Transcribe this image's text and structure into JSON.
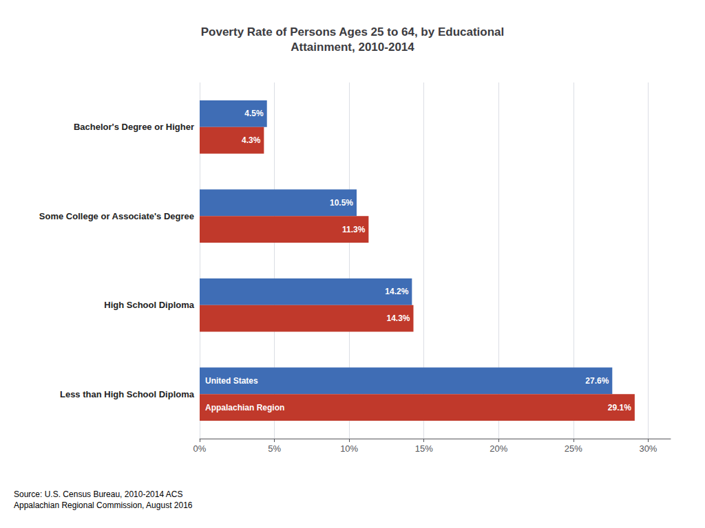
{
  "chart_data": {
    "type": "bar",
    "orientation": "horizontal",
    "title": "Poverty Rate of Persons Ages 25 to 64, by Educational\nAttainment, 2010-2014",
    "categories": [
      "Less than High School Diploma",
      "High School Diploma",
      "Some College or Associate's Degree",
      "Bachelor's Degree or Higher"
    ],
    "series": [
      {
        "name": "United States",
        "color": "#3F6DB5",
        "values": [
          27.6,
          14.2,
          10.5,
          4.5
        ],
        "value_labels": [
          "27.6%",
          "14.2%",
          "10.5%",
          "4.5%"
        ]
      },
      {
        "name": "Appalachian Region",
        "color": "#C0392B",
        "values": [
          29.1,
          14.3,
          11.3,
          4.3
        ],
        "value_labels": [
          "29.1%",
          "14.3%",
          "11.3%",
          "4.3%"
        ]
      }
    ],
    "xlim": [
      0,
      31.5
    ],
    "xticks": [
      {
        "value": 0,
        "label": "0%"
      },
      {
        "value": 5,
        "label": "5%"
      },
      {
        "value": 10,
        "label": "10%"
      },
      {
        "value": 15,
        "label": "15%"
      },
      {
        "value": 20,
        "label": "20%"
      },
      {
        "value": 25,
        "label": "25%"
      },
      {
        "value": 30,
        "label": "30%"
      }
    ],
    "grid": true,
    "data_labels": true,
    "annotations": [
      "Source: U.S. Census Bureau, 2010-2014 ACS\nAppalachian Regional Commission, August 2016"
    ]
  }
}
